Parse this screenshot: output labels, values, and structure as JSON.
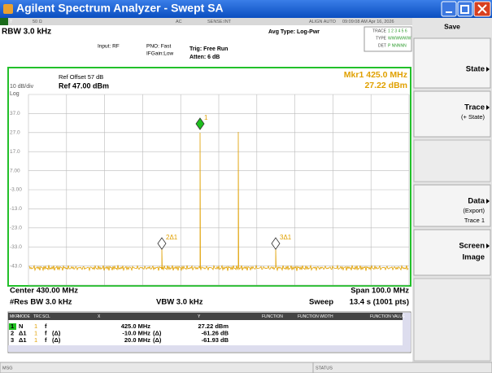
{
  "window": {
    "title": "Agilent Spectrum Analyzer - Swept SA"
  },
  "status_row": [
    "T",
    "50 Ω",
    "AC",
    "SENSE:INT",
    "ALIGN AUTO",
    "09:09:08 AM Apr 16, 2026"
  ],
  "settings": {
    "rbw": "RBW 3.0 kHz",
    "input": "Input: RF",
    "pno": "PNO: Fast",
    "ifgain": "IFGain:Low",
    "trig": "Trig: Free Run",
    "atten": "Atten: 6 dB",
    "avg_type": "Avg Type: Log-Pwr"
  },
  "trace_box": {
    "trace_label": "TRACE",
    "trace_nums": "1 2 3 4 5 6",
    "type_label": "TYPE",
    "type_value": "WWWWWW",
    "det_label": "DET",
    "det_value": "P NNNNN"
  },
  "graph": {
    "ref_offset": "Ref Offset 57 dB",
    "ref": "Ref 47.00 dBm",
    "scale": "10 dB/div",
    "scale_type": "Log",
    "marker_freq": "Mkr1 425.0 MHz",
    "marker_amp": "27.22 dBm",
    "y_labels": [
      "37.0",
      "27.0",
      "17.0",
      "7.00",
      "-3.00",
      "-13.0",
      "-23.0",
      "-33.0",
      "-43.0"
    ],
    "markers": [
      "1",
      "2Δ1",
      "3Δ1"
    ]
  },
  "footer": {
    "center": "Center 430.00 MHz",
    "res_bw": "#Res BW 3.0 kHz",
    "vbw": "VBW 3.0 kHz",
    "span": "Span 100.0 MHz",
    "sweep_label": "Sweep",
    "sweep": "13.4 s (1001 pts)"
  },
  "marker_table": {
    "columns": [
      "MKR",
      "MODE",
      "TRC",
      "SCL",
      "X",
      "Y",
      "FUNCTION",
      "FUNCTION WIDTH",
      "FUNCTION VALUE"
    ],
    "rows": [
      {
        "mkr": "1",
        "mode": "N",
        "trc": "1",
        "scl": "f",
        "x": "425.0 MHz",
        "y": "27.22 dBm"
      },
      {
        "mkr": "2",
        "mode": "Δ1",
        "trc": "1",
        "scl": "f",
        "scl_ref": "(Δ)",
        "x": "-10.0 MHz",
        "x_ref": "(Δ)",
        "y": "-61.26 dB"
      },
      {
        "mkr": "3",
        "mode": "Δ1",
        "trc": "1",
        "scl": "f",
        "scl_ref": "(Δ)",
        "x": "20.0 MHz",
        "x_ref": "(Δ)",
        "y": "-61.93 dB"
      }
    ]
  },
  "softkeys": {
    "menu": "Save",
    "keys": [
      [
        "State"
      ],
      [
        "Trace",
        "(+ State)"
      ],
      [
        "Data",
        "(Export)",
        "Trace 1"
      ],
      [
        "Screen",
        "Image"
      ]
    ]
  },
  "status_bar": {
    "msg": "MSG",
    "status": "STATUS"
  }
}
